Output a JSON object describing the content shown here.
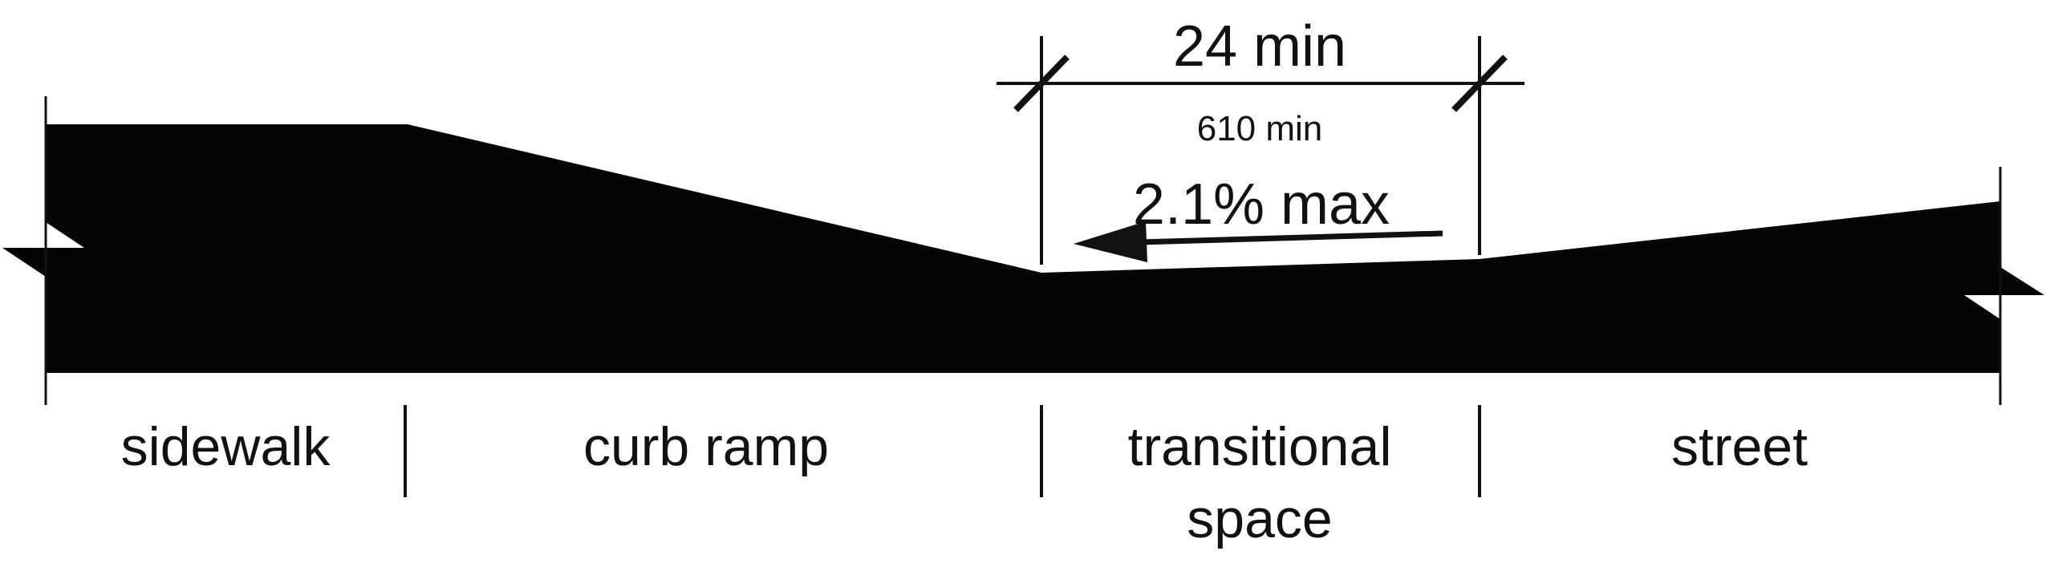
{
  "dimension": {
    "imperial": "24 min",
    "metric": "610 min"
  },
  "slope": {
    "label": "2.1% max"
  },
  "zones": {
    "sidewalk": "sidewalk",
    "curb_ramp": "curb ramp",
    "transitional_line1": "transitional",
    "transitional_line2": "space",
    "street": "street"
  },
  "colors": {
    "fill": "#050505",
    "line": "#111111",
    "background": "#ffffff"
  }
}
